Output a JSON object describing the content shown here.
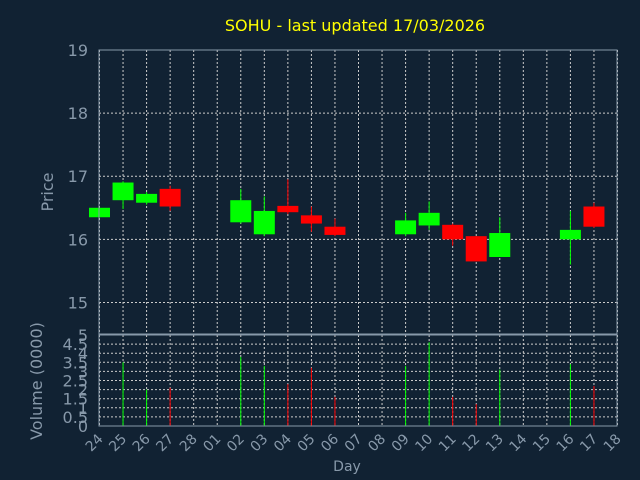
{
  "colors": {
    "background": "#112233",
    "axis": "#8899aa",
    "grid": "#cccccc",
    "title": "#ffff00",
    "label": "#8899aa",
    "up": "#00ff00",
    "down": "#ff0000"
  },
  "chart_data": {
    "type": "candlestick",
    "title": "SOHU - last updated 17/03/2026",
    "xlabel": "Day",
    "ylabel": "Price",
    "volume_label": "Volume (0000)",
    "price_ylim": [
      14.5,
      19
    ],
    "price_ticks": [
      "15",
      "16",
      "17",
      "18",
      "19"
    ],
    "volume_ylim": [
      0,
      5
    ],
    "volume_ticks": [
      "0",
      "0.5",
      "1",
      "1.5",
      "2",
      "2.5",
      "3",
      "3.5",
      "4",
      "4.5",
      "5"
    ],
    "grid": true,
    "x_ticks": [
      "24",
      "25",
      "26",
      "27",
      "28",
      "01",
      "02",
      "03",
      "04",
      "05",
      "06",
      "07",
      "08",
      "09",
      "10",
      "11",
      "12",
      "13",
      "14",
      "15",
      "16",
      "17",
      "18"
    ],
    "candles": [
      {
        "day": "24",
        "open": 16.35,
        "close": 16.5,
        "high": 16.5,
        "low": 16.35,
        "volume": 0
      },
      {
        "day": "25",
        "open": 16.62,
        "close": 16.9,
        "high": 16.92,
        "low": 16.48,
        "volume": 3.5
      },
      {
        "day": "26",
        "open": 16.58,
        "close": 16.72,
        "high": 16.75,
        "low": 16.55,
        "volume": 2.0
      },
      {
        "day": "27",
        "open": 16.8,
        "close": 16.52,
        "high": 16.85,
        "low": 16.45,
        "volume": 2.1
      },
      {
        "day": "02",
        "open": 16.27,
        "close": 16.62,
        "high": 16.8,
        "low": 16.25,
        "volume": 3.8
      },
      {
        "day": "03",
        "open": 16.08,
        "close": 16.45,
        "high": 16.68,
        "low": 16.05,
        "volume": 3.3
      },
      {
        "day": "04",
        "open": 16.53,
        "close": 16.43,
        "high": 16.95,
        "low": 16.4,
        "volume": 2.3
      },
      {
        "day": "05",
        "open": 16.38,
        "close": 16.25,
        "high": 16.52,
        "low": 16.12,
        "volume": 3.2
      },
      {
        "day": "06",
        "open": 16.2,
        "close": 16.07,
        "high": 16.33,
        "low": 16.05,
        "volume": 1.6
      },
      {
        "day": "09",
        "open": 16.08,
        "close": 16.3,
        "high": 16.42,
        "low": 16.05,
        "volume": 3.3
      },
      {
        "day": "10",
        "open": 16.22,
        "close": 16.42,
        "high": 16.6,
        "low": 16.15,
        "volume": 4.6
      },
      {
        "day": "11",
        "open": 16.23,
        "close": 16.0,
        "high": 16.25,
        "low": 15.9,
        "volume": 1.6
      },
      {
        "day": "12",
        "open": 16.05,
        "close": 15.65,
        "high": 16.05,
        "low": 15.65,
        "volume": 1.2
      },
      {
        "day": "13",
        "open": 15.72,
        "close": 16.1,
        "high": 16.35,
        "low": 15.72,
        "volume": 3.1
      },
      {
        "day": "16",
        "open": 16.0,
        "close": 16.15,
        "high": 16.45,
        "low": 15.6,
        "volume": 3.4
      },
      {
        "day": "17",
        "open": 16.52,
        "close": 16.2,
        "high": 16.58,
        "low": 16.18,
        "volume": 2.2
      }
    ]
  }
}
